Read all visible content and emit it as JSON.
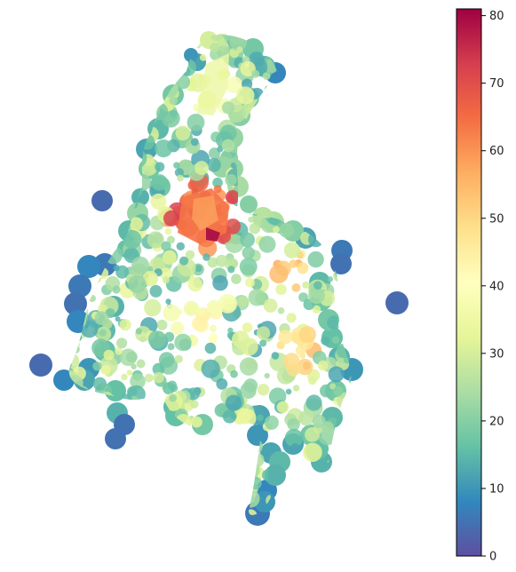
{
  "colorbar": {
    "ticks": [
      {
        "value": 0,
        "label": "0"
      },
      {
        "value": 10,
        "label": "10"
      },
      {
        "value": 20,
        "label": "20"
      },
      {
        "value": 30,
        "label": "30"
      },
      {
        "value": 40,
        "label": "40"
      },
      {
        "value": 50,
        "label": "50"
      },
      {
        "value": 60,
        "label": "60"
      },
      {
        "value": 70,
        "label": "70"
      },
      {
        "value": 80,
        "label": "80"
      }
    ],
    "min": 0,
    "max": 81,
    "colormap": "Spectral_r",
    "stops": [
      "#5e4fa2",
      "#3288bd",
      "#66c2a5",
      "#abdda4",
      "#e6f598",
      "#ffffbf",
      "#fee08b",
      "#fdae61",
      "#f46d43",
      "#d53e4f",
      "#9e0142"
    ]
  },
  "map": {
    "style": "choropleth of buffered point cells",
    "hotspot_max_value": 80
  }
}
